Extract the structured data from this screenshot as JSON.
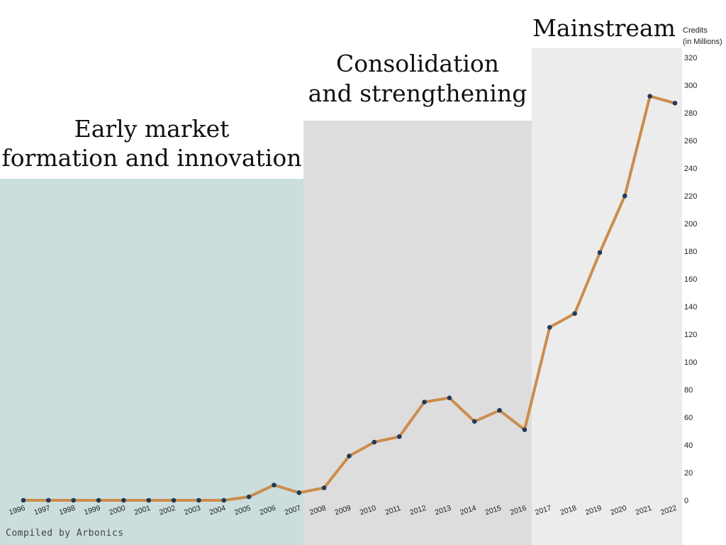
{
  "chart_data": {
    "type": "line",
    "x": [
      "1996",
      "1997",
      "1998",
      "1999",
      "2000",
      "2001",
      "2002",
      "2003",
      "2004",
      "2005",
      "2006",
      "2007",
      "2008",
      "2009",
      "2010",
      "2011",
      "2012",
      "2013",
      "2014",
      "2015",
      "2016",
      "2017",
      "2018",
      "2019",
      "2020",
      "2021",
      "2022"
    ],
    "series": [
      {
        "values": [
          0,
          0,
          0,
          0,
          0,
          0,
          0,
          0,
          0,
          2.5,
          11,
          5.5,
          9,
          32,
          42,
          46,
          71,
          74,
          57,
          65,
          51,
          125,
          135,
          179,
          220,
          292,
          287
        ]
      }
    ],
    "ylabel_line1": "Credits",
    "ylabel_line2": "(in Millions)",
    "ylim": [
      0,
      320
    ],
    "yticks": [
      0,
      20,
      40,
      60,
      80,
      100,
      120,
      140,
      160,
      180,
      200,
      220,
      240,
      260,
      280,
      300,
      320
    ],
    "grid": false,
    "y_axis_side": "right",
    "phases": [
      {
        "title_lines": [
          "Early market",
          "formation and innovation"
        ],
        "from": "1996",
        "to": "2007",
        "color": "#cbdedd"
      },
      {
        "title_lines": [
          "Consolidation",
          "and strengthening"
        ],
        "from": "2008",
        "to": "2016",
        "color": "#dddddd"
      },
      {
        "title_lines": [
          "Mainstream"
        ],
        "from": "2017",
        "to": "2022",
        "color": "#ececec"
      }
    ],
    "line_color": "#cc8c4c",
    "marker_color": "#1f3a5a"
  },
  "footer": {
    "credit": "Compiled by Arbonics"
  }
}
